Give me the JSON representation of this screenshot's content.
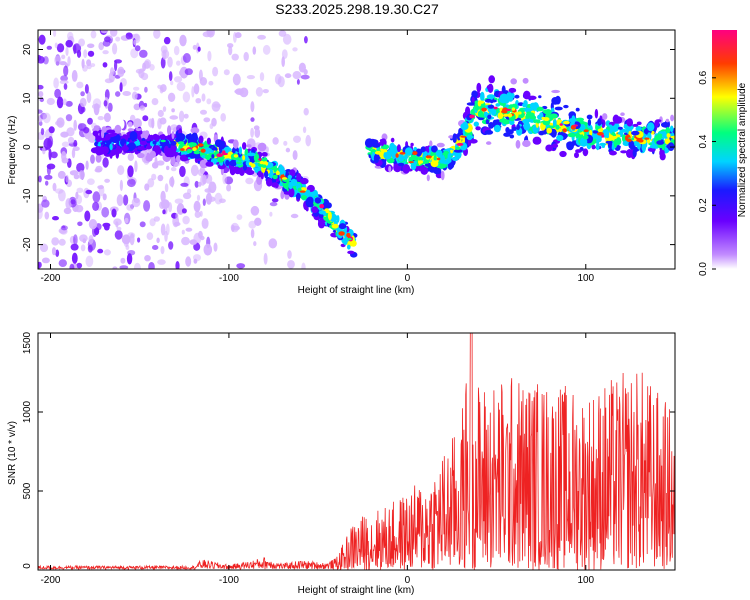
{
  "title": "S233.2025.298.19.30.C27",
  "chart_data": [
    {
      "type": "heatmap",
      "name": "spectrogram",
      "xlabel": "Height of straight line (km)",
      "ylabel": "Frequency (Hz)",
      "xlim": [
        -207,
        150
      ],
      "ylim": [
        -25,
        24
      ],
      "xticks": [
        -200,
        -100,
        0,
        100
      ],
      "xtick_labels": [
        "-200",
        "-100",
        "0",
        "100"
      ],
      "yticks": [
        -20,
        -10,
        0,
        10,
        20
      ],
      "ytick_labels": [
        "-20",
        "-10",
        "0",
        "10",
        "20"
      ],
      "colorbar": {
        "label": "Normalized spectral amplitude",
        "range": [
          0,
          0.75
        ],
        "ticks": [
          0.0,
          0.2,
          0.4,
          0.6
        ],
        "tick_labels": [
          "0.0",
          "0.2",
          "0.4",
          "0.6"
        ],
        "colors": [
          "#ffffff",
          "#c28cff",
          "#6a00ff",
          "#1a1aff",
          "#00d4ff",
          "#00ff7f",
          "#ffff00",
          "#ff3c00",
          "#ff0080"
        ]
      },
      "ridge": {
        "x": [
          -207,
          -150,
          -120,
          -100,
          -85,
          -70,
          -55,
          -45,
          -35,
          -30,
          -25,
          -20,
          0,
          20,
          30,
          40,
          60,
          80,
          100,
          120,
          150
        ],
        "freq": [
          0,
          1,
          0,
          -2,
          -3,
          -6,
          -10,
          -14,
          -18,
          -20,
          -1,
          -1,
          -2,
          -3,
          1,
          8,
          7,
          5,
          3,
          2,
          2
        ],
        "band_halfwidth": [
          4,
          3,
          3,
          3,
          3,
          3,
          3,
          3,
          3,
          3,
          3,
          3,
          3,
          3,
          4,
          6,
          6,
          6,
          5,
          4,
          4
        ]
      }
    },
    {
      "type": "line",
      "name": "snr",
      "xlabel": "Height of straight line (km)",
      "ylabel": "SNR (10 * v/v)",
      "xlim": [
        -207,
        150
      ],
      "ylim": [
        0,
        1500
      ],
      "xticks": [
        -200,
        -100,
        0,
        100
      ],
      "xtick_labels": [
        "-200",
        "-100",
        "0",
        "100"
      ],
      "yticks": [
        0,
        500,
        1000,
        1500
      ],
      "ytick_labels": [
        "0",
        "500",
        "1000",
        "1500"
      ],
      "color": "#ee2222",
      "envelope": {
        "x": [
          -207,
          -120,
          -115,
          -100,
          -90,
          -80,
          -70,
          -60,
          -45,
          -38,
          -30,
          -20,
          -10,
          0,
          10,
          20,
          30,
          35,
          40,
          60,
          80,
          100,
          120,
          130,
          140,
          150
        ],
        "max": [
          30,
          30,
          90,
          40,
          70,
          110,
          50,
          80,
          60,
          120,
          320,
          380,
          420,
          500,
          600,
          750,
          950,
          1500,
          1200,
          1250,
          1200,
          1150,
          1250,
          1300,
          1150,
          1000
        ]
      }
    }
  ]
}
